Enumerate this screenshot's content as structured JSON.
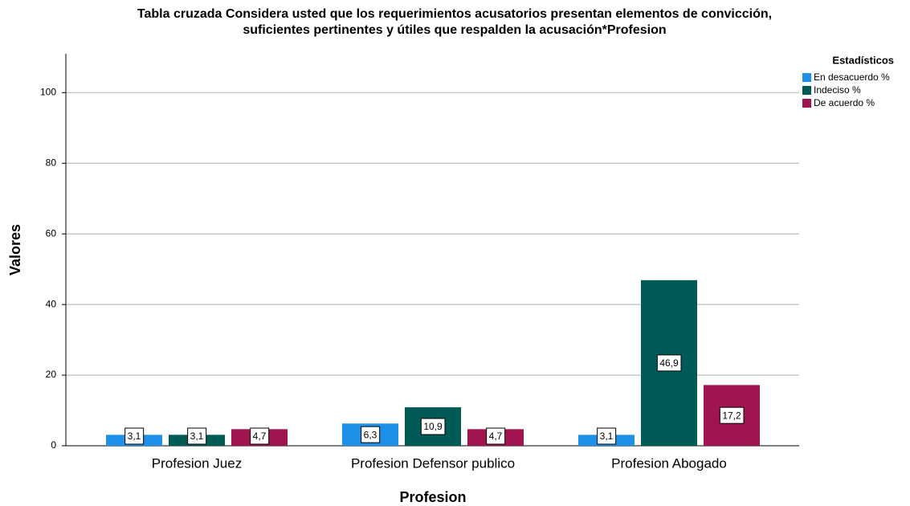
{
  "chart_data": {
    "type": "bar",
    "title": [
      "Tabla cruzada Considera usted que los requerimientos acusatorios presentan elementos de convicción,",
      "suficientes pertinentes y útiles que respalden la acusación*Profesion"
    ],
    "x_label": "Profesion",
    "y_label": "Valores",
    "legend_title": "Estadísticos",
    "categories": [
      "Profesion Juez",
      "Profesion Defensor publico",
      "Profesion Abogado"
    ],
    "series": [
      {
        "name": "En desacuerdo %",
        "color": "#1e90e8",
        "values": [
          3.1,
          6.3,
          3.1
        ],
        "value_labels": [
          "3,1",
          "6,3",
          "3,1"
        ]
      },
      {
        "name": "Indeciso %",
        "color": "#005b57",
        "values": [
          3.1,
          10.9,
          46.9
        ],
        "value_labels": [
          "3,1",
          "10,9",
          "46,9"
        ]
      },
      {
        "name": "De acuerdo %",
        "color": "#a0154f",
        "values": [
          4.7,
          4.7,
          17.2
        ],
        "value_labels": [
          "4,7",
          "4,7",
          "17,2"
        ]
      }
    ],
    "ylim": [
      0,
      111
    ],
    "yticks": [
      0,
      20,
      40,
      60,
      80,
      100
    ],
    "grid": true,
    "legend": "top-right"
  }
}
